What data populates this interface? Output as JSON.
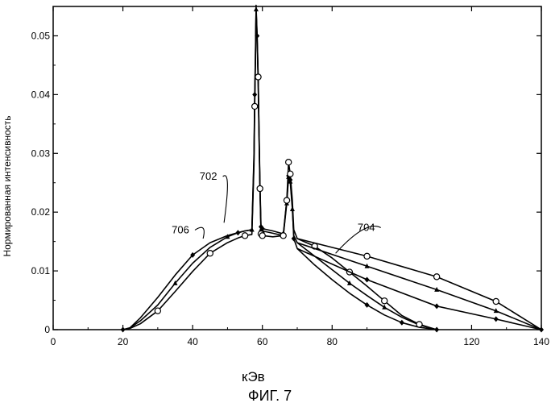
{
  "chart_data": {
    "type": "line",
    "caption": "ФИГ. 7",
    "xlabel": "кЭв",
    "ylabel": "Нормированная интенсивность",
    "xlim": [
      0,
      140
    ],
    "ylim": [
      0,
      0.055
    ],
    "x_ticks": [
      0,
      20,
      40,
      60,
      80,
      120,
      140
    ],
    "x_tick_labels": [
      "0",
      "20",
      "40",
      "60",
      "80",
      "120",
      "140"
    ],
    "y_ticks": [
      0,
      0.01,
      0.02,
      0.03,
      0.04,
      0.05
    ],
    "y_tick_labels": [
      "0",
      "0.01",
      "0.02",
      "0.03",
      "0.04",
      "0.05"
    ],
    "grid": false,
    "legend": "none",
    "series": [
      {
        "marker": "diamond",
        "points": [
          [
            20,
            0
          ],
          [
            22,
            0.0003
          ],
          [
            25,
            0.002
          ],
          [
            30,
            0.0055
          ],
          [
            35,
            0.0093
          ],
          [
            40,
            0.0127
          ],
          [
            45,
            0.0148
          ],
          [
            50,
            0.016
          ],
          [
            53,
            0.0165
          ],
          [
            55,
            0.0168
          ],
          [
            57,
            0.017
          ],
          [
            57.6,
            0.03
          ],
          [
            57.8,
            0.04
          ],
          [
            58,
            0.047
          ],
          [
            58.2,
            0.0552
          ],
          [
            58.5,
            0.05
          ],
          [
            58.8,
            0.043
          ],
          [
            59,
            0.035
          ],
          [
            59.3,
            0.025
          ],
          [
            59.6,
            0.0175
          ],
          [
            60,
            0.0172
          ],
          [
            63,
            0.0168
          ],
          [
            66,
            0.0163
          ],
          [
            67,
            0.022
          ],
          [
            67.5,
            0.0262
          ],
          [
            68,
            0.0255
          ],
          [
            68.6,
            0.021
          ],
          [
            69,
            0.0155
          ],
          [
            70,
            0.0138
          ],
          [
            75,
            0.011
          ],
          [
            80,
            0.0085
          ],
          [
            85,
            0.0062
          ],
          [
            90,
            0.0042
          ],
          [
            95,
            0.0025
          ],
          [
            100,
            0.0012
          ],
          [
            105,
            0.0004
          ],
          [
            110,
            0
          ]
        ]
      },
      {
        "marker": "triangle",
        "points": [
          [
            20,
            0
          ],
          [
            22,
            0.0003
          ],
          [
            25,
            0.0015
          ],
          [
            30,
            0.0042
          ],
          [
            35,
            0.0079
          ],
          [
            40,
            0.0113
          ],
          [
            45,
            0.014
          ],
          [
            50,
            0.0158
          ],
          [
            53,
            0.0165
          ],
          [
            55,
            0.0168
          ],
          [
            57,
            0.017
          ],
          [
            57.6,
            0.029
          ],
          [
            57.8,
            0.039
          ],
          [
            58,
            0.046
          ],
          [
            58.2,
            0.0545
          ],
          [
            58.5,
            0.049
          ],
          [
            58.8,
            0.042
          ],
          [
            59,
            0.034
          ],
          [
            59.3,
            0.024
          ],
          [
            59.6,
            0.017
          ],
          [
            60,
            0.0168
          ],
          [
            63,
            0.0164
          ],
          [
            66,
            0.016
          ],
          [
            67,
            0.0215
          ],
          [
            67.5,
            0.026
          ],
          [
            68,
            0.0252
          ],
          [
            68.6,
            0.0205
          ],
          [
            69,
            0.016
          ],
          [
            70,
            0.0148
          ],
          [
            75,
            0.0125
          ],
          [
            80,
            0.0102
          ],
          [
            85,
            0.0079
          ],
          [
            90,
            0.0058
          ],
          [
            95,
            0.0038
          ],
          [
            100,
            0.0021
          ],
          [
            105,
            0.0008
          ],
          [
            110,
            0
          ]
        ]
      },
      {
        "marker": "circle",
        "points": [
          [
            20,
            0
          ],
          [
            22,
            0.0002
          ],
          [
            25,
            0.001
          ],
          [
            30,
            0.0032
          ],
          [
            35,
            0.0065
          ],
          [
            40,
            0.0099
          ],
          [
            45,
            0.013
          ],
          [
            50,
            0.0148
          ],
          [
            53,
            0.0156
          ],
          [
            55,
            0.016
          ],
          [
            57,
            0.0162
          ],
          [
            57.6,
            0.028
          ],
          [
            57.8,
            0.038
          ],
          [
            58,
            0.046
          ],
          [
            58.2,
            0.0545
          ],
          [
            58.5,
            0.05
          ],
          [
            58.8,
            0.043
          ],
          [
            59,
            0.035
          ],
          [
            59.3,
            0.024
          ],
          [
            59.6,
            0.0163
          ],
          [
            60,
            0.016
          ],
          [
            63,
            0.0158
          ],
          [
            66,
            0.016
          ],
          [
            67,
            0.022
          ],
          [
            67.5,
            0.0285
          ],
          [
            68,
            0.0265
          ],
          [
            68.6,
            0.022
          ],
          [
            69,
            0.017
          ],
          [
            70,
            0.0155
          ],
          [
            75,
            0.0142
          ],
          [
            80,
            0.0122
          ],
          [
            85,
            0.0098
          ],
          [
            90,
            0.0074
          ],
          [
            95,
            0.0049
          ],
          [
            100,
            0.0024
          ],
          [
            105,
            0.0009
          ],
          [
            110,
            0
          ]
        ]
      }
    ],
    "annotations": [
      {
        "label": "702",
        "text_at": [
          44.5,
          0.0255
        ],
        "arrow_to": [
          49,
          0.0182
        ]
      },
      {
        "label": "706",
        "text_at": [
          36.5,
          0.0164
        ],
        "arrow_to": [
          43,
          0.0155
        ]
      },
      {
        "label": "704",
        "text_at": [
          89.8,
          0.0168
        ],
        "arrow_to": [
          81,
          0.013
        ]
      }
    ]
  }
}
